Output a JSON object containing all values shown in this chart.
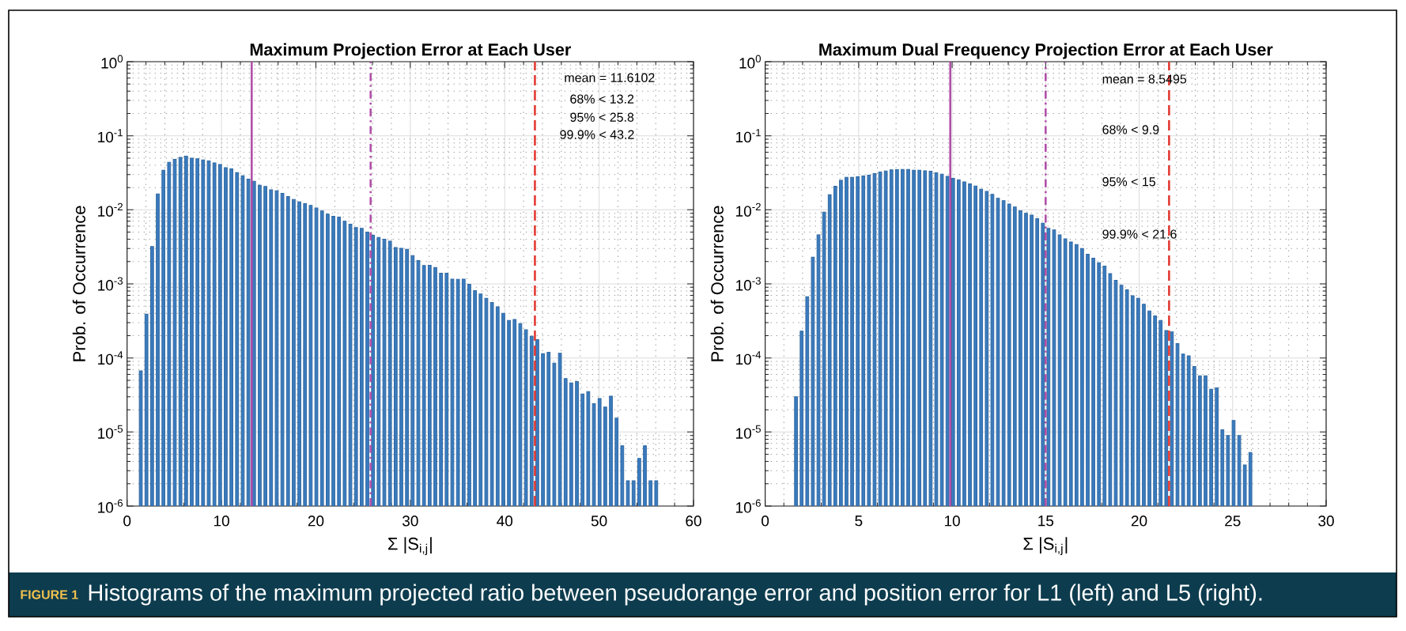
{
  "chart_data": [
    {
      "type": "bar",
      "title": "Maximum Projection Error at Each User",
      "xlabel": "Σ |S$_{i,j}$|",
      "ylabel": "Prob. of Occurrence",
      "color": "#3a7bbf",
      "x": [
        1.45,
        2.05,
        2.65,
        3.25,
        3.85,
        4.45,
        5.05,
        5.65,
        6.25,
        6.85,
        7.45,
        8.05,
        8.65,
        9.25,
        9.85,
        10.45,
        11.05,
        11.65,
        12.25,
        12.85,
        13.45,
        14.05,
        14.65,
        15.25,
        15.85,
        16.45,
        17.05,
        17.65,
        18.25,
        18.85,
        19.45,
        20.05,
        20.65,
        21.25,
        21.85,
        22.45,
        23.05,
        23.65,
        24.25,
        24.85,
        25.45,
        26.05,
        26.65,
        27.25,
        27.85,
        28.45,
        29.05,
        29.65,
        30.25,
        30.85,
        31.45,
        32.05,
        32.65,
        33.25,
        33.85,
        34.45,
        35.05,
        35.65,
        36.25,
        36.85,
        37.45,
        38.05,
        38.65,
        39.25,
        39.85,
        40.45,
        41.05,
        41.65,
        42.25,
        42.85,
        43.45,
        44.05,
        44.65,
        45.25,
        45.85,
        46.45,
        47.05,
        47.65,
        48.25,
        48.85,
        49.45,
        50.05,
        50.65,
        51.25,
        51.85,
        52.45,
        53.05,
        53.65,
        54.25,
        54.85,
        55.45,
        56.05
      ],
      "values": [
        6.7e-05,
        0.00039,
        0.0032,
        0.0164,
        0.0343,
        0.0439,
        0.048,
        0.0512,
        0.0533,
        0.0499,
        0.0488,
        0.0471,
        0.0456,
        0.0431,
        0.041,
        0.0372,
        0.0357,
        0.0319,
        0.0289,
        0.026,
        0.0243,
        0.0215,
        0.0207,
        0.0187,
        0.0181,
        0.0167,
        0.0151,
        0.0138,
        0.0128,
        0.0121,
        0.0115,
        0.0106,
        0.00966,
        0.00876,
        0.0082,
        0.008,
        0.00703,
        0.00642,
        0.00577,
        0.00563,
        0.00502,
        0.00455,
        0.00423,
        0.004,
        0.00378,
        0.0031,
        0.00303,
        0.00293,
        0.00241,
        0.00206,
        0.00177,
        0.00178,
        0.00167,
        0.00139,
        0.00139,
        0.00116,
        0.00115,
        0.00116,
        0.00099,
        0.00081,
        0.00073,
        0.00064,
        0.00056,
        0.00049,
        0.0004,
        0.00032,
        0.00033,
        0.00029,
        0.00024,
        0.000196,
        0.000177,
        0.000114,
        0.000119,
        8.5e-05,
        0.000116,
        5.26e-05,
        4.61e-05,
        4.81e-05,
        3.27e-05,
        3.52e-05,
        2.42e-05,
        2.84e-05,
        2.17e-05,
        3.04e-05,
        1.54e-05,
        6.5e-06,
        2.2e-06,
        2.2e-06,
        4.4e-06,
        6.5e-06,
        2.2e-06,
        2.2e-06
      ],
      "xlim": [
        0,
        60
      ],
      "ylim": [
        1e-06,
        1
      ],
      "xticks": [
        0,
        10,
        20,
        30,
        40,
        50,
        60
      ],
      "yticks": [
        {
          "value": 1e-06,
          "label": "10$^{-6}$"
        },
        {
          "value": 1e-05,
          "label": "10$^{-5}$"
        },
        {
          "value": 0.0001,
          "label": "10$^{-4}$"
        },
        {
          "value": 0.001,
          "label": "10$^{-3}$"
        },
        {
          "value": 0.01,
          "label": "10$^{-2}$"
        },
        {
          "value": 0.1,
          "label": "10$^{-1}$"
        },
        {
          "value": 1,
          "label": "10$^{0}$"
        }
      ],
      "log": true,
      "grid": true,
      "ref_lines": [
        {
          "axis": "x",
          "value": 13.2,
          "color": "#b04fa8",
          "line_style": "solid"
        },
        {
          "axis": "x",
          "value": 25.8,
          "color": "#b04fa8",
          "line_style": "dashdot"
        },
        {
          "axis": "x",
          "value": 43.2,
          "color": "#e23b33",
          "line_style": "dashed"
        }
      ],
      "annotations": [
        "mean = 11.6102",
        "68% < 13.2",
        "95% < 25.8",
        "99.9% < 43.2",
        "FIGURE 1",
        "Histograms of the maximum projected ratio between pseudorange error and position error for L1 (left) and L5 (right)."
      ]
    },
    {
      "type": "bar",
      "title": "Maximum Dual Frequency Projection Error at Each User",
      "xlabel": "Σ |S$_{i,j}$|",
      "ylabel": "Prob. of Occurrence",
      "color": "#3a7bbf",
      "x": [
        1.65,
        1.95,
        2.25,
        2.55,
        2.85,
        3.15,
        3.45,
        3.75,
        4.05,
        4.35,
        4.65,
        4.95,
        5.25,
        5.55,
        5.85,
        6.15,
        6.45,
        6.75,
        7.05,
        7.35,
        7.65,
        7.95,
        8.25,
        8.55,
        8.85,
        9.15,
        9.45,
        9.75,
        10.05,
        10.35,
        10.65,
        10.95,
        11.25,
        11.55,
        11.85,
        12.15,
        12.45,
        12.75,
        13.05,
        13.35,
        13.65,
        13.95,
        14.25,
        14.55,
        14.85,
        15.15,
        15.45,
        15.75,
        16.05,
        16.35,
        16.65,
        16.95,
        17.25,
        17.55,
        17.85,
        18.15,
        18.45,
        18.75,
        19.05,
        19.35,
        19.65,
        19.95,
        20.25,
        20.55,
        20.85,
        21.15,
        21.45,
        21.75,
        22.05,
        22.35,
        22.65,
        22.95,
        23.25,
        23.55,
        23.85,
        24.15,
        24.45,
        24.75,
        25.05,
        25.35,
        25.65,
        25.95
      ],
      "values": [
        3e-05,
        0.00023,
        0.00067,
        0.0023,
        0.0046,
        0.0093,
        0.016,
        0.0208,
        0.0251,
        0.0275,
        0.0275,
        0.0279,
        0.0286,
        0.0294,
        0.0308,
        0.0324,
        0.0334,
        0.0346,
        0.0348,
        0.0351,
        0.0351,
        0.0343,
        0.0343,
        0.0337,
        0.0332,
        0.0316,
        0.0303,
        0.0284,
        0.0266,
        0.0253,
        0.0239,
        0.0224,
        0.021,
        0.019,
        0.0177,
        0.0162,
        0.0143,
        0.0133,
        0.012,
        0.0109,
        0.00973,
        0.00897,
        0.00848,
        0.00762,
        0.00658,
        0.00563,
        0.00536,
        0.00459,
        0.00406,
        0.00368,
        0.0034,
        0.003,
        0.00251,
        0.00222,
        0.00193,
        0.00174,
        0.00138,
        0.00112,
        0.00096,
        0.00083,
        0.00069,
        0.00064,
        0.00053,
        0.00043,
        0.00037,
        0.00032,
        0.000234,
        0.000225,
        0.000156,
        0.000113,
        0.000107,
        7.66e-05,
        5.75e-05,
        5.75e-05,
        3.79e-05,
        3.95e-05,
        1.07e-05,
        9e-06,
        1.43e-05,
        9e-06,
        3.6e-06,
        5.3e-06
      ],
      "xlim": [
        0,
        30
      ],
      "ylim": [
        1e-06,
        1
      ],
      "xticks": [
        0,
        5,
        10,
        15,
        20,
        25,
        30
      ],
      "yticks": [
        {
          "value": 1e-06,
          "label": "10$^{-6}$"
        },
        {
          "value": 1e-05,
          "label": "10$^{-5}$"
        },
        {
          "value": 0.0001,
          "label": "10$^{-4}$"
        },
        {
          "value": 0.001,
          "label": "10$^{-3}$"
        },
        {
          "value": 0.01,
          "label": "10$^{-2}$"
        },
        {
          "value": 0.1,
          "label": "10$^{-1}$"
        },
        {
          "value": 1,
          "label": "10$^{0}$"
        }
      ],
      "log": true,
      "grid": true,
      "ref_lines": [
        {
          "axis": "x",
          "value": 9.9,
          "color": "#b04fa8",
          "line_style": "solid"
        },
        {
          "axis": "x",
          "value": 15,
          "color": "#b04fa8",
          "line_style": "dashdot"
        },
        {
          "axis": "x",
          "value": 21.6,
          "color": "#e23b33",
          "line_style": "dashed"
        }
      ],
      "annotations": [
        "mean = 8.5495",
        "68% < 9.9",
        "95% < 15",
        "99.9% < 21.6"
      ]
    }
  ]
}
